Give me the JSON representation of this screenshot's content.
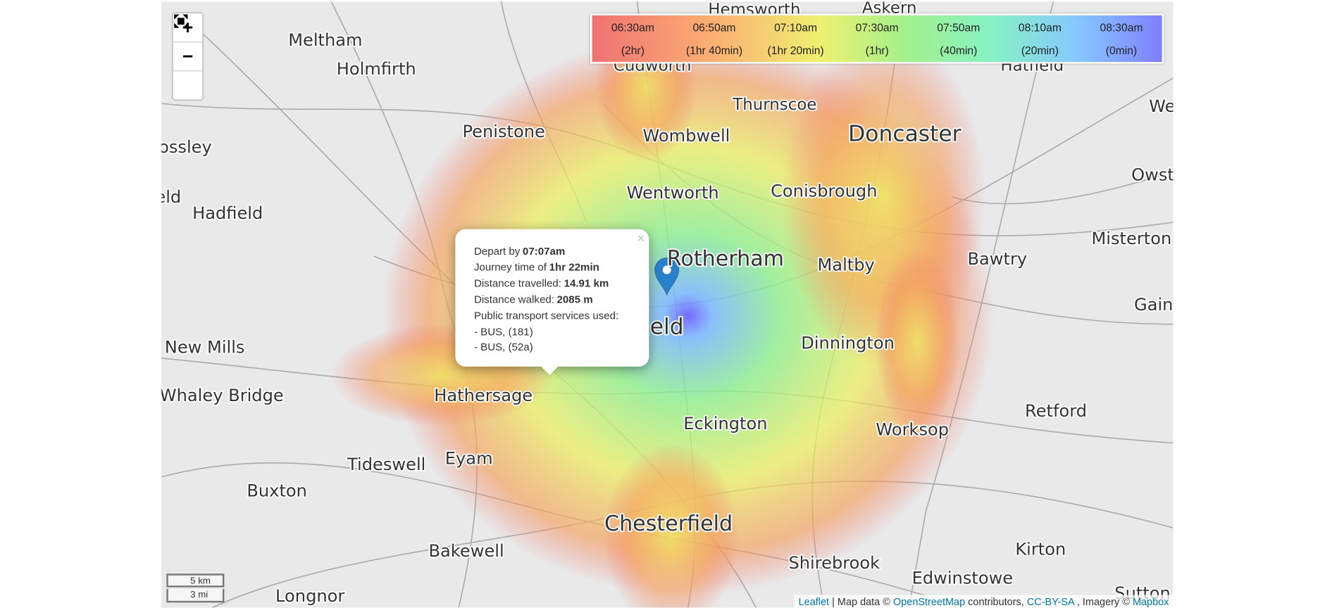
{
  "controls": {
    "zoom_in": "+",
    "zoom_out": "−"
  },
  "legend": [
    {
      "time": "06:30am",
      "duration": "(2hr)"
    },
    {
      "time": "06:50am",
      "duration": "(1hr 40min)"
    },
    {
      "time": "07:10am",
      "duration": "(1hr 20min)"
    },
    {
      "time": "07:30am",
      "duration": "(1hr)"
    },
    {
      "time": "07:50am",
      "duration": "(40min)"
    },
    {
      "time": "08:10am",
      "duration": "(20min)"
    },
    {
      "time": "08:30am",
      "duration": "(0min)"
    }
  ],
  "places": [
    "Hemsworth",
    "Askern",
    "Meltham",
    "Holmfirth",
    "Cudworth",
    "Hatfield",
    "Thurnscoe",
    "Penistone",
    "Wombwell",
    "Doncaster",
    "ossley",
    "We",
    "Owst",
    "Wentworth",
    "Conisbrough",
    "eld",
    "Hadfield",
    "Rotherham",
    "Maltby",
    "Bawtry",
    "Misterton",
    "Gain",
    "eld",
    "Dinnington",
    "New Mills",
    "Whaley Bridge",
    "Hathersage",
    "Eckington",
    "Worksop",
    "Retford",
    "Tideswell",
    "Eyam",
    "Buxton",
    "Chesterfield",
    "Kirton",
    "Bakewell",
    "Shirebrook",
    "Edwinstowe",
    "Longnor",
    "Sutton"
  ],
  "popup": {
    "close": "×",
    "lines": [
      {
        "label": "Depart by",
        "value": "07:07am"
      },
      {
        "label": "Journey time of",
        "value": "1hr 22min"
      },
      {
        "label": "Distance travelled:",
        "value": "14.91 km"
      },
      {
        "label": "Distance walked:",
        "value": "2085 m"
      },
      {
        "label": "Public transport services used:"
      },
      {
        "label": "- BUS, (181)"
      },
      {
        "label": "- BUS, (52a)"
      }
    ]
  },
  "scale": [
    "5 km",
    "3 mi"
  ],
  "attribution": [
    "Leaflet",
    "| Map data ©",
    "OpenStreetMap",
    "contributors,",
    "CC-BY-SA",
    ", Imagery ©",
    "Mapbox"
  ]
}
